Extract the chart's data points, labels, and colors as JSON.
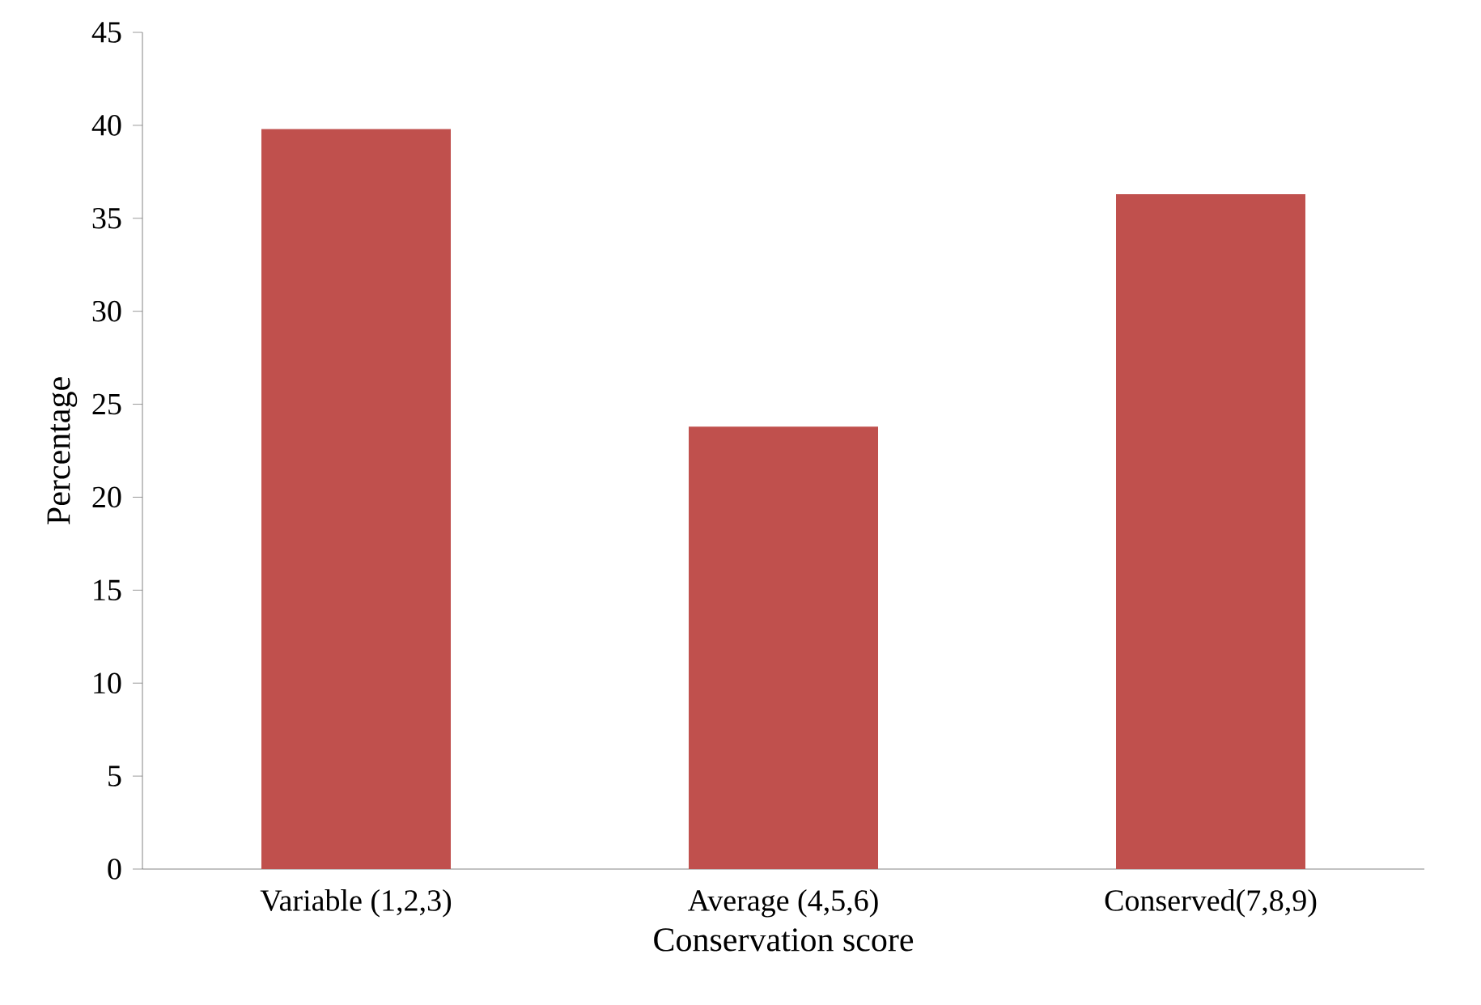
{
  "chart_data": {
    "type": "bar",
    "xlabel": "Conservation score",
    "ylabel": "Percentage",
    "categories": [
      "Variable (1,2,3)",
      "Average (4,5,6)",
      "Conserved(7,8,9)"
    ],
    "values": [
      39.8,
      23.8,
      36.3
    ],
    "color": "#c0504d",
    "ylim": [
      0,
      45
    ],
    "yticks": [
      0,
      5,
      10,
      15,
      20,
      25,
      30,
      35,
      40,
      45
    ]
  }
}
